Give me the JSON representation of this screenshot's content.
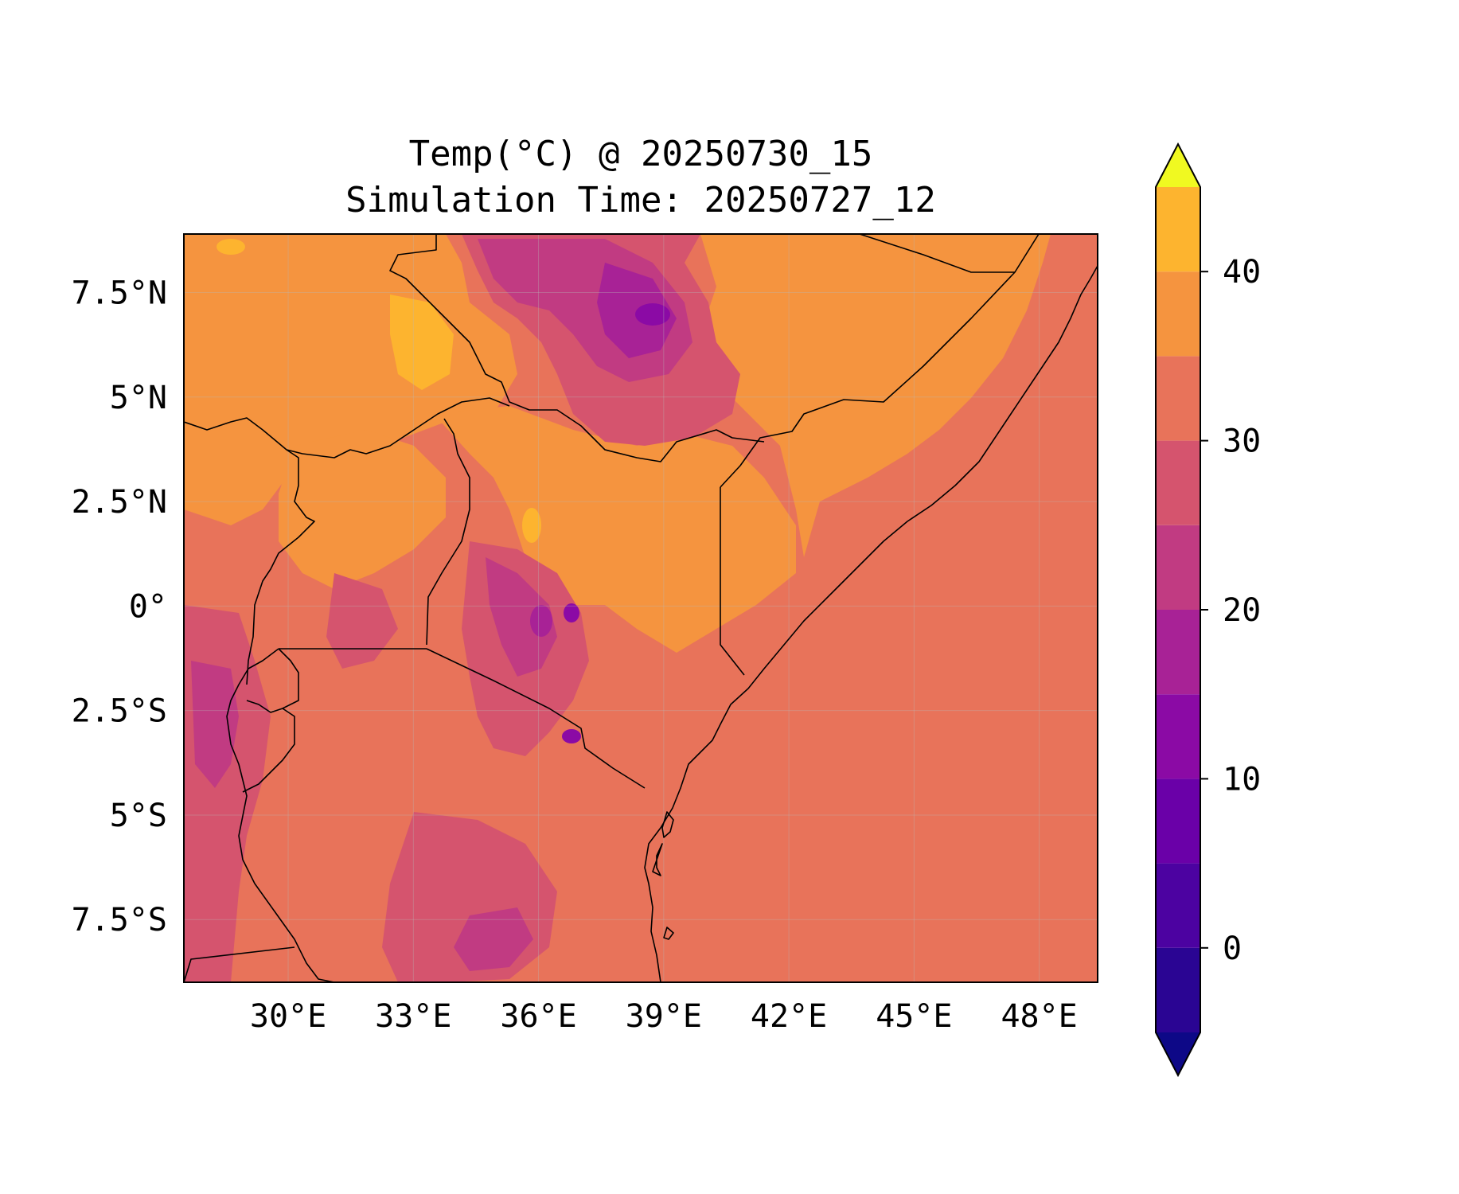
{
  "title_line1": "Temp(°C) @ 20250730_15",
  "title_line2": "Simulation Time: 20250727_12",
  "map": {
    "lon_range": [
      27.5,
      49.4
    ],
    "lat_range": [
      -9.0,
      8.9
    ],
    "lon_ticks": [
      {
        "value": 30,
        "label": "30°E"
      },
      {
        "value": 33,
        "label": "33°E"
      },
      {
        "value": 36,
        "label": "36°E"
      },
      {
        "value": 39,
        "label": "39°E"
      },
      {
        "value": 42,
        "label": "42°E"
      },
      {
        "value": 45,
        "label": "45°E"
      },
      {
        "value": 48,
        "label": "48°E"
      }
    ],
    "lat_ticks": [
      {
        "value": 7.5,
        "label": "7.5°N"
      },
      {
        "value": 5,
        "label": "5°N"
      },
      {
        "value": 2.5,
        "label": "2.5°N"
      },
      {
        "value": 0,
        "label": "0°"
      },
      {
        "value": -2.5,
        "label": "2.5°S"
      },
      {
        "value": -5,
        "label": "5°S"
      },
      {
        "value": -7.5,
        "label": "7.5°S"
      }
    ],
    "grid": true
  },
  "colorbar": {
    "range": [
      -5,
      45
    ],
    "levels": [
      -5,
      0,
      5,
      10,
      15,
      20,
      25,
      30,
      35,
      40,
      45
    ],
    "colors": [
      "#2a0593",
      "#4c02a1",
      "#6a00a8",
      "#8b0aa5",
      "#a82296",
      "#c13b82",
      "#d5546e",
      "#e8735a",
      "#f5943f",
      "#fdb42f",
      "#f3e02a"
    ],
    "under_color": "#0d0887",
    "over_color": "#f0f921",
    "ticks": [
      {
        "value": 0,
        "label": "0"
      },
      {
        "value": 10,
        "label": "10"
      },
      {
        "value": 20,
        "label": "20"
      },
      {
        "value": 30,
        "label": "30"
      },
      {
        "value": 40,
        "label": "40"
      }
    ]
  }
}
